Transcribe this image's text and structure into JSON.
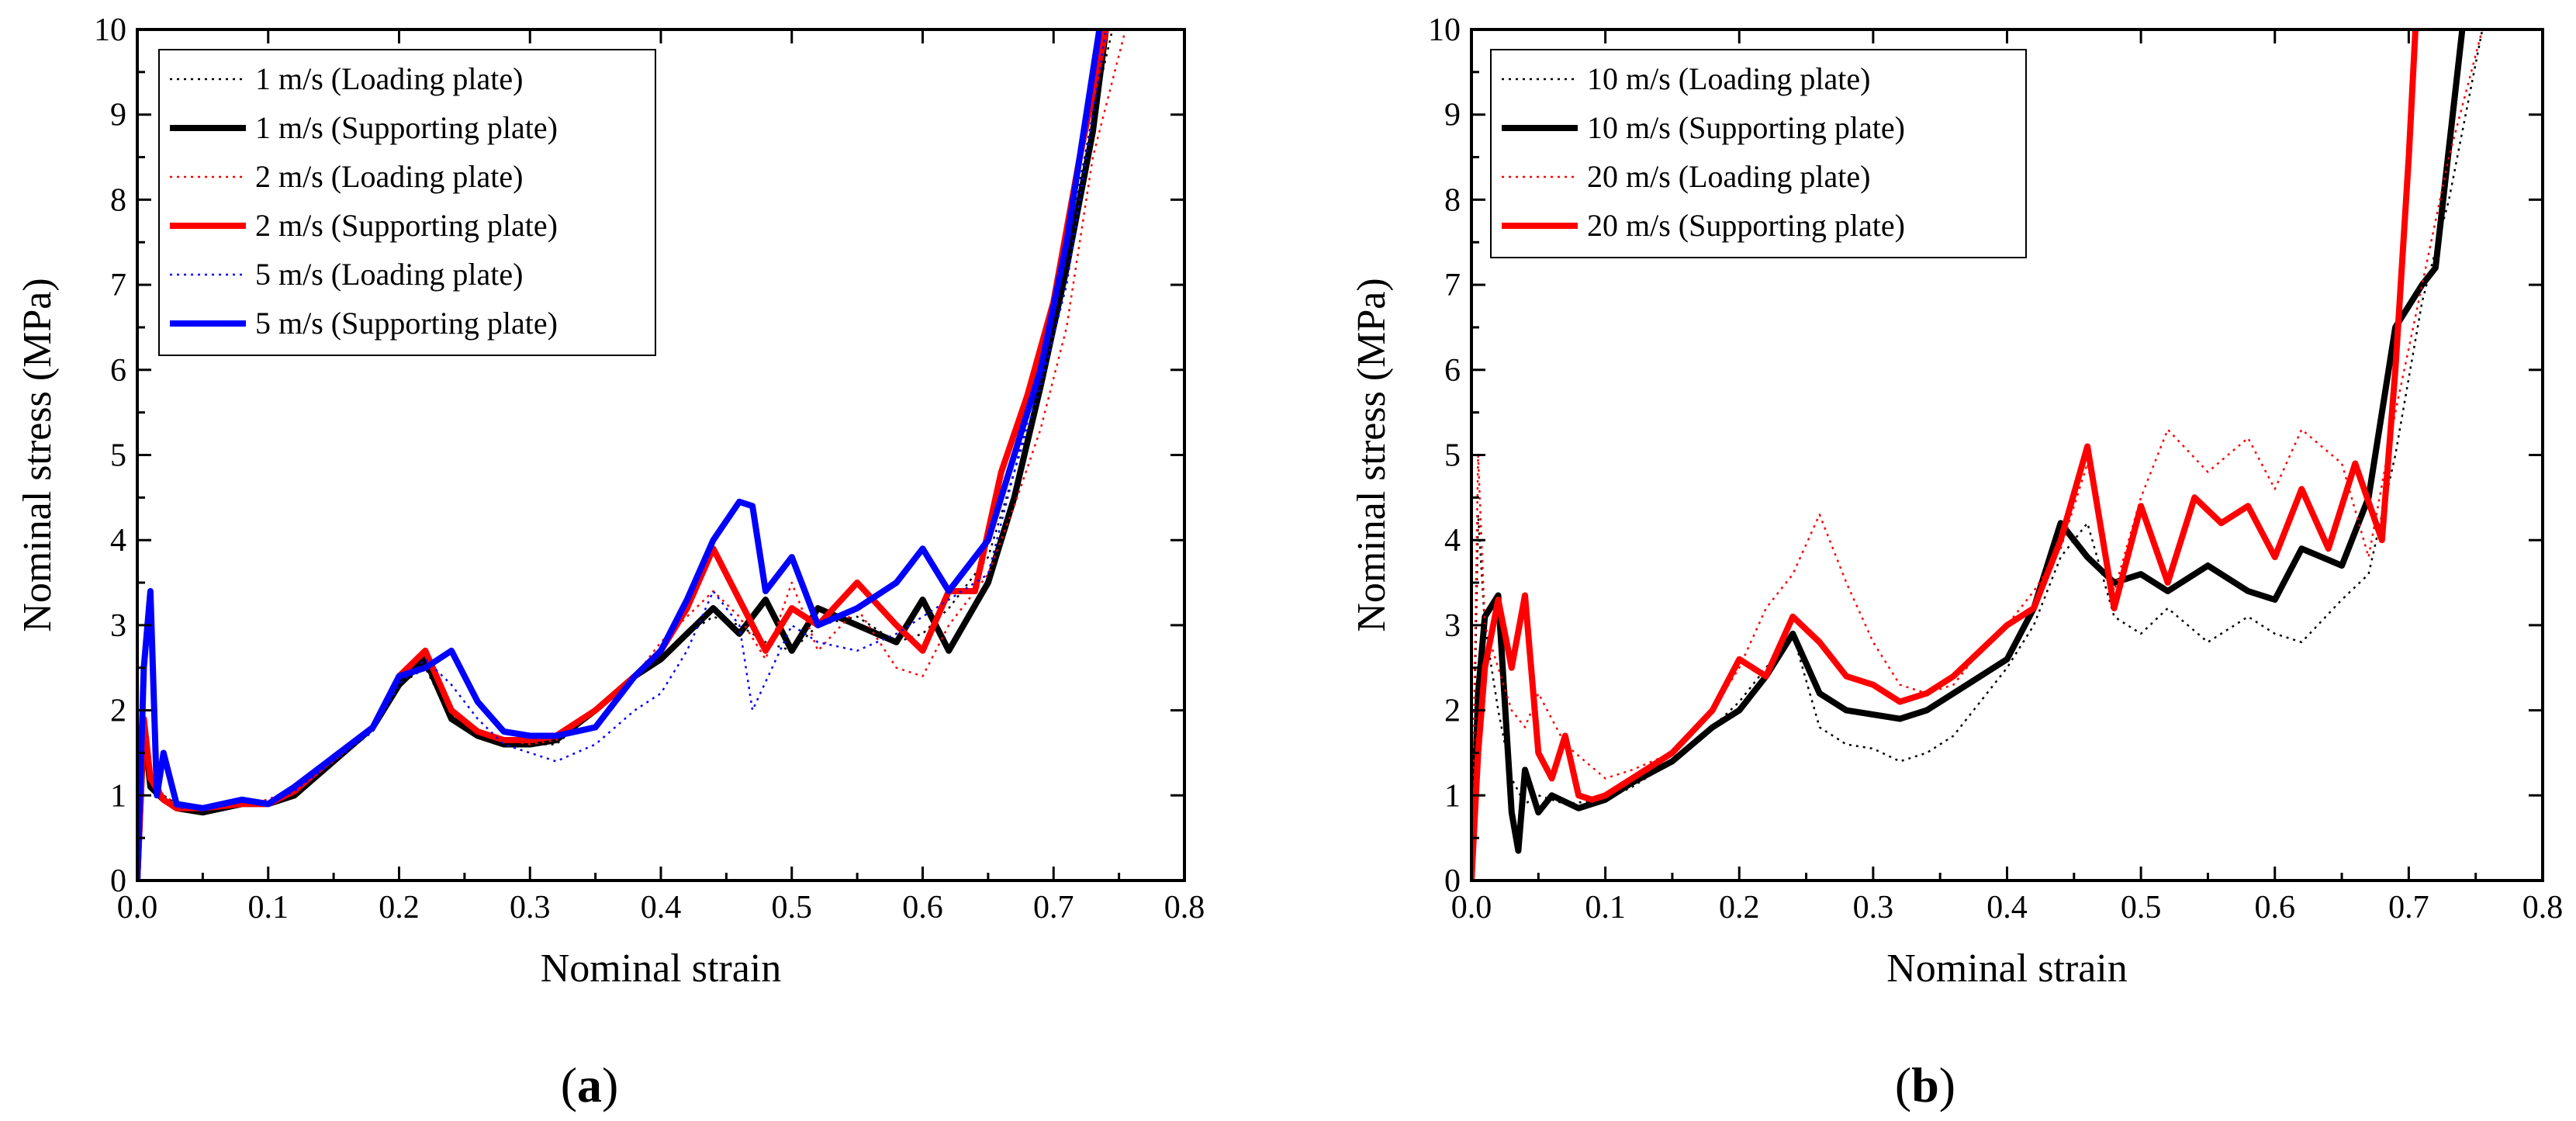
{
  "figure": {
    "panels": [
      {
        "id": "a",
        "label_open": "(",
        "label_letter": "a",
        "label_close": ")"
      },
      {
        "id": "b",
        "label_open": "(",
        "label_letter": "b",
        "label_close": ")"
      }
    ]
  },
  "chart_data": [
    {
      "type": "line",
      "panel": "a",
      "title": "",
      "xlabel": "Nominal strain",
      "ylabel": "Nominal stress (MPa)",
      "xlim": [
        0.0,
        0.8
      ],
      "ylim": [
        0,
        10
      ],
      "xticks": [
        "0.0",
        "0.1",
        "0.2",
        "0.3",
        "0.4",
        "0.5",
        "0.6",
        "0.7",
        "0.8"
      ],
      "yticks": [
        "0",
        "1",
        "2",
        "3",
        "4",
        "5",
        "6",
        "7",
        "8",
        "9",
        "10"
      ],
      "legend_position": "top-left",
      "series": [
        {
          "name": "1 m/s (Loading plate)",
          "color": "#000000",
          "style": "dotted",
          "x": [
            0.0,
            0.005,
            0.01,
            0.02,
            0.03,
            0.05,
            0.08,
            0.1,
            0.12,
            0.15,
            0.18,
            0.2,
            0.22,
            0.24,
            0.26,
            0.28,
            0.3,
            0.32,
            0.35,
            0.38,
            0.4,
            0.42,
            0.44,
            0.46,
            0.48,
            0.5,
            0.52,
            0.55,
            0.58,
            0.6,
            0.62,
            0.65,
            0.67,
            0.69,
            0.71,
            0.73,
            0.745
          ],
          "y": [
            0.0,
            1.9,
            1.2,
            1.0,
            0.9,
            0.85,
            0.9,
            0.9,
            1.05,
            1.4,
            1.8,
            2.3,
            2.5,
            1.9,
            1.7,
            1.6,
            1.6,
            1.6,
            2.0,
            2.4,
            2.6,
            2.9,
            3.1,
            3.0,
            2.8,
            2.7,
            3.0,
            3.1,
            2.8,
            2.9,
            3.2,
            3.8,
            4.8,
            6.0,
            7.4,
            9.0,
            10.0
          ]
        },
        {
          "name": "1 m/s (Supporting plate)",
          "color": "#000000",
          "style": "solid",
          "x": [
            0.0,
            0.005,
            0.01,
            0.02,
            0.03,
            0.05,
            0.08,
            0.1,
            0.12,
            0.15,
            0.18,
            0.2,
            0.22,
            0.24,
            0.26,
            0.28,
            0.3,
            0.32,
            0.35,
            0.38,
            0.4,
            0.42,
            0.44,
            0.46,
            0.48,
            0.5,
            0.52,
            0.55,
            0.58,
            0.6,
            0.62,
            0.65,
            0.67,
            0.69,
            0.71,
            0.73,
            0.74
          ],
          "y": [
            0.0,
            1.8,
            1.1,
            0.95,
            0.85,
            0.8,
            0.9,
            0.9,
            1.0,
            1.4,
            1.8,
            2.3,
            2.6,
            1.9,
            1.7,
            1.6,
            1.6,
            1.65,
            2.0,
            2.4,
            2.6,
            2.9,
            3.2,
            2.9,
            3.3,
            2.7,
            3.2,
            3.0,
            2.8,
            3.3,
            2.7,
            3.5,
            4.5,
            5.8,
            7.2,
            8.8,
            10.0
          ]
        },
        {
          "name": "2 m/s (Loading plate)",
          "color": "#ff0000",
          "style": "dotted",
          "x": [
            0.0,
            0.005,
            0.01,
            0.02,
            0.03,
            0.05,
            0.08,
            0.1,
            0.12,
            0.15,
            0.18,
            0.2,
            0.22,
            0.24,
            0.26,
            0.28,
            0.3,
            0.32,
            0.35,
            0.38,
            0.4,
            0.42,
            0.44,
            0.46,
            0.48,
            0.5,
            0.52,
            0.55,
            0.58,
            0.6,
            0.62,
            0.65,
            0.67,
            0.69,
            0.71,
            0.73,
            0.755
          ],
          "y": [
            0.0,
            2.0,
            1.3,
            1.0,
            0.9,
            0.85,
            0.9,
            0.95,
            1.1,
            1.4,
            1.8,
            2.4,
            2.7,
            2.0,
            1.75,
            1.65,
            1.6,
            1.65,
            2.0,
            2.4,
            2.8,
            3.1,
            3.4,
            3.1,
            2.6,
            3.5,
            2.7,
            3.2,
            2.5,
            2.4,
            3.0,
            3.6,
            4.4,
            5.3,
            6.5,
            8.5,
            10.0
          ]
        },
        {
          "name": "2 m/s (Supporting plate)",
          "color": "#ff0000",
          "style": "solid",
          "x": [
            0.0,
            0.005,
            0.01,
            0.02,
            0.03,
            0.05,
            0.08,
            0.1,
            0.12,
            0.15,
            0.18,
            0.2,
            0.22,
            0.24,
            0.26,
            0.28,
            0.3,
            0.32,
            0.35,
            0.38,
            0.4,
            0.42,
            0.44,
            0.46,
            0.48,
            0.5,
            0.52,
            0.55,
            0.58,
            0.6,
            0.62,
            0.64,
            0.66,
            0.68,
            0.7,
            0.72,
            0.74
          ],
          "y": [
            0.0,
            1.9,
            1.2,
            0.95,
            0.85,
            0.85,
            0.9,
            0.9,
            1.05,
            1.45,
            1.8,
            2.4,
            2.7,
            2.0,
            1.75,
            1.65,
            1.65,
            1.7,
            2.0,
            2.4,
            2.7,
            3.2,
            3.9,
            3.3,
            2.7,
            3.2,
            3.0,
            3.5,
            3.0,
            2.7,
            3.4,
            3.4,
            4.8,
            5.7,
            6.8,
            8.5,
            10.0
          ]
        },
        {
          "name": "5 m/s (Loading plate)",
          "color": "#0000ff",
          "style": "dotted",
          "x": [
            0.0,
            0.005,
            0.01,
            0.015,
            0.02,
            0.03,
            0.05,
            0.08,
            0.1,
            0.12,
            0.15,
            0.18,
            0.2,
            0.22,
            0.24,
            0.26,
            0.28,
            0.3,
            0.32,
            0.35,
            0.38,
            0.4,
            0.42,
            0.44,
            0.46,
            0.47,
            0.5,
            0.52,
            0.55,
            0.58,
            0.6,
            0.62,
            0.65,
            0.67,
            0.69,
            0.71,
            0.74
          ],
          "y": [
            0.0,
            2.6,
            3.2,
            1.2,
            1.5,
            0.85,
            0.85,
            0.95,
            0.9,
            1.05,
            1.4,
            1.75,
            2.3,
            2.6,
            2.3,
            1.9,
            1.6,
            1.5,
            1.4,
            1.6,
            2.0,
            2.2,
            2.7,
            3.4,
            3.0,
            2.0,
            3.0,
            2.8,
            2.7,
            2.9,
            3.1,
            3.3,
            3.6,
            4.8,
            5.8,
            7.0,
            10.0
          ]
        },
        {
          "name": "5 m/s (Supporting plate)",
          "color": "#0000ff",
          "style": "solid",
          "x": [
            0.0,
            0.005,
            0.01,
            0.015,
            0.02,
            0.03,
            0.05,
            0.08,
            0.1,
            0.12,
            0.15,
            0.18,
            0.2,
            0.22,
            0.24,
            0.26,
            0.28,
            0.3,
            0.32,
            0.35,
            0.38,
            0.4,
            0.42,
            0.44,
            0.46,
            0.47,
            0.48,
            0.5,
            0.52,
            0.55,
            0.58,
            0.6,
            0.62,
            0.65,
            0.67,
            0.69,
            0.71,
            0.735
          ],
          "y": [
            0.0,
            2.5,
            3.4,
            1.0,
            1.5,
            0.9,
            0.85,
            0.95,
            0.9,
            1.1,
            1.45,
            1.8,
            2.4,
            2.5,
            2.7,
            2.1,
            1.75,
            1.7,
            1.7,
            1.8,
            2.4,
            2.7,
            3.3,
            4.0,
            4.45,
            4.4,
            3.4,
            3.8,
            3.0,
            3.2,
            3.5,
            3.9,
            3.4,
            4.0,
            5.0,
            6.0,
            7.5,
            10.0
          ]
        }
      ]
    },
    {
      "type": "line",
      "panel": "b",
      "title": "",
      "xlabel": "Nominal strain",
      "ylabel": "Nominal stress (MPa)",
      "xlim": [
        0.0,
        0.8
      ],
      "ylim": [
        0,
        10
      ],
      "xticks": [
        "0.0",
        "0.1",
        "0.2",
        "0.3",
        "0.4",
        "0.5",
        "0.6",
        "0.7",
        "0.8"
      ],
      "yticks": [
        "0",
        "1",
        "2",
        "3",
        "4",
        "5",
        "6",
        "7",
        "8",
        "9",
        "10"
      ],
      "legend_position": "top-left",
      "series": [
        {
          "name": "10 m/s (Loading plate)",
          "color": "#000000",
          "style": "dotted",
          "x": [
            0.0,
            0.005,
            0.01,
            0.02,
            0.03,
            0.04,
            0.05,
            0.07,
            0.1,
            0.12,
            0.15,
            0.18,
            0.2,
            0.22,
            0.24,
            0.26,
            0.28,
            0.3,
            0.32,
            0.34,
            0.36,
            0.38,
            0.4,
            0.42,
            0.44,
            0.46,
            0.48,
            0.5,
            0.52,
            0.55,
            0.58,
            0.6,
            0.62,
            0.65,
            0.67,
            0.69,
            0.71,
            0.73,
            0.755
          ],
          "y": [
            0.0,
            4.3,
            3.0,
            2.0,
            1.2,
            0.9,
            1.0,
            0.9,
            0.95,
            1.1,
            1.4,
            1.8,
            2.1,
            2.5,
            2.9,
            1.8,
            1.6,
            1.55,
            1.4,
            1.5,
            1.7,
            2.1,
            2.5,
            3.0,
            3.8,
            4.2,
            3.1,
            2.9,
            3.2,
            2.8,
            3.1,
            2.9,
            2.8,
            3.3,
            3.6,
            5.0,
            6.8,
            8.0,
            10.0
          ]
        },
        {
          "name": "10 m/s (Supporting plate)",
          "color": "#000000",
          "style": "solid",
          "x": [
            0.0,
            0.005,
            0.01,
            0.02,
            0.03,
            0.035,
            0.04,
            0.05,
            0.06,
            0.08,
            0.1,
            0.12,
            0.15,
            0.18,
            0.2,
            0.22,
            0.24,
            0.26,
            0.28,
            0.3,
            0.32,
            0.34,
            0.36,
            0.38,
            0.4,
            0.42,
            0.44,
            0.46,
            0.48,
            0.5,
            0.52,
            0.55,
            0.58,
            0.6,
            0.62,
            0.65,
            0.67,
            0.69,
            0.71,
            0.72,
            0.74
          ],
          "y": [
            0.0,
            2.2,
            3.1,
            3.35,
            0.8,
            0.35,
            1.3,
            0.8,
            1.0,
            0.85,
            0.95,
            1.15,
            1.4,
            1.8,
            2.0,
            2.4,
            2.9,
            2.2,
            2.0,
            1.95,
            1.9,
            2.0,
            2.2,
            2.4,
            2.6,
            3.2,
            4.2,
            3.8,
            3.5,
            3.6,
            3.4,
            3.7,
            3.4,
            3.3,
            3.9,
            3.7,
            4.5,
            6.5,
            7.0,
            7.2,
            10.0
          ]
        },
        {
          "name": "20 m/s (Loading plate)",
          "color": "#ff0000",
          "style": "dotted",
          "x": [
            0.0,
            0.005,
            0.01,
            0.02,
            0.03,
            0.04,
            0.05,
            0.07,
            0.1,
            0.12,
            0.15,
            0.18,
            0.2,
            0.22,
            0.24,
            0.26,
            0.28,
            0.3,
            0.32,
            0.34,
            0.36,
            0.38,
            0.4,
            0.42,
            0.44,
            0.46,
            0.48,
            0.5,
            0.52,
            0.55,
            0.58,
            0.6,
            0.62,
            0.65,
            0.67,
            0.69,
            0.71,
            0.73,
            0.755
          ],
          "y": [
            0.0,
            5.0,
            3.0,
            2.5,
            2.0,
            1.8,
            2.2,
            1.6,
            1.2,
            1.3,
            1.5,
            2.0,
            2.5,
            3.2,
            3.6,
            4.3,
            3.5,
            2.8,
            2.3,
            2.2,
            2.3,
            2.7,
            3.0,
            3.4,
            3.9,
            4.9,
            3.4,
            4.5,
            5.3,
            4.8,
            5.2,
            4.6,
            5.3,
            4.9,
            3.8,
            5.5,
            7.0,
            8.5,
            10.0
          ]
        },
        {
          "name": "20 m/s (Supporting plate)",
          "color": "#ff0000",
          "style": "solid",
          "x": [
            0.0,
            0.005,
            0.01,
            0.02,
            0.03,
            0.04,
            0.05,
            0.06,
            0.07,
            0.08,
            0.09,
            0.1,
            0.12,
            0.15,
            0.18,
            0.2,
            0.22,
            0.24,
            0.26,
            0.28,
            0.3,
            0.32,
            0.34,
            0.36,
            0.38,
            0.4,
            0.42,
            0.44,
            0.46,
            0.48,
            0.5,
            0.52,
            0.54,
            0.56,
            0.58,
            0.6,
            0.62,
            0.64,
            0.66,
            0.68,
            0.69,
            0.7,
            0.705
          ],
          "y": [
            0.0,
            1.5,
            2.5,
            3.3,
            2.5,
            3.35,
            1.5,
            1.2,
            1.7,
            1.0,
            0.95,
            1.0,
            1.2,
            1.5,
            2.0,
            2.6,
            2.4,
            3.1,
            2.8,
            2.4,
            2.3,
            2.1,
            2.2,
            2.4,
            2.7,
            3.0,
            3.2,
            4.0,
            5.1,
            3.2,
            4.4,
            3.5,
            4.5,
            4.2,
            4.4,
            3.8,
            4.6,
            3.9,
            4.9,
            4.0,
            6.0,
            8.5,
            10.0
          ]
        }
      ]
    }
  ]
}
